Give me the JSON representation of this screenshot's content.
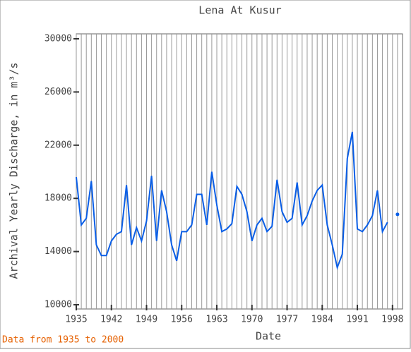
{
  "chart_data": {
    "type": "line",
    "title": "Lena At Kusur",
    "x_label": "Date",
    "y_label": "Archival Yearly Discharge, in m³/s",
    "footer": "Data from 1935 to 2000",
    "x": [
      1935,
      1936,
      1937,
      1938,
      1939,
      1940,
      1941,
      1942,
      1943,
      1944,
      1945,
      1946,
      1947,
      1948,
      1949,
      1950,
      1951,
      1952,
      1953,
      1954,
      1955,
      1956,
      1957,
      1958,
      1959,
      1960,
      1961,
      1962,
      1963,
      1964,
      1965,
      1966,
      1967,
      1968,
      1969,
      1970,
      1971,
      1972,
      1973,
      1974,
      1975,
      1976,
      1977,
      1978,
      1979,
      1980,
      1981,
      1982,
      1983,
      1984,
      1985,
      1986,
      1987,
      1988,
      1989,
      1990,
      1991,
      1992,
      1993,
      1994,
      1995,
      1996,
      1997,
      1998,
      1999
    ],
    "series": [
      {
        "color": "#0a5ee6",
        "values": [
          19600,
          16000,
          16500,
          19300,
          14500,
          13700,
          13700,
          14800,
          15300,
          15500,
          19000,
          14500,
          15800,
          14800,
          16300,
          19700,
          14800,
          18600,
          17000,
          14500,
          13300,
          15500,
          15500,
          16000,
          18300,
          18300,
          16000,
          20000,
          17500,
          15500,
          15700,
          16100,
          18900,
          18300,
          17000,
          14800,
          16000,
          16500,
          15500,
          15900,
          19400,
          17000,
          16200,
          16500,
          19200,
          16000,
          16700,
          17800,
          18600,
          19000,
          16000,
          14500,
          12800,
          13800,
          21000,
          23000,
          15700,
          15500,
          16000,
          16700,
          18600,
          15500,
          16200,
          null,
          16800
        ]
      }
    ],
    "xlim": [
      1935,
      2000
    ],
    "ylim": [
      10000,
      30000
    ],
    "xticks": [
      1935,
      1942,
      1949,
      1956,
      1963,
      1970,
      1977,
      1984,
      1991,
      1998
    ],
    "yticks": [
      10000,
      14000,
      18000,
      22000,
      26000,
      30000
    ],
    "grid": true
  }
}
